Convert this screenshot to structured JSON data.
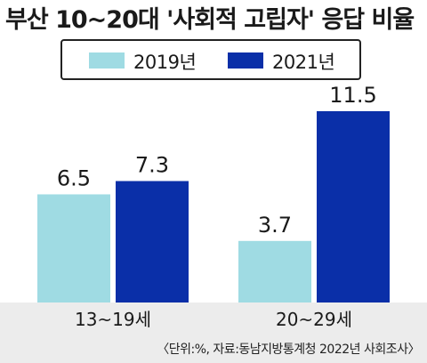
{
  "chart_data": {
    "type": "bar",
    "title": "부산 10~20대 '사회적 고립자' 응답 비율",
    "categories": [
      "13~19세",
      "20~29세"
    ],
    "series": [
      {
        "name": "2019년",
        "values": [
          6.5,
          3.7
        ],
        "labels": [
          "6.5",
          "3.7"
        ],
        "color": "#9fdbe3"
      },
      {
        "name": "2021년",
        "values": [
          7.3,
          11.5
        ],
        "labels": [
          "7.3",
          "11.5"
        ],
        "color": "#0a2fa8"
      }
    ],
    "ylim": [
      0,
      12.3
    ],
    "grid": false,
    "legend_position": "top",
    "source": "〈단위:%, 자료:동남지방통계청 2022년 사회조사〉"
  }
}
